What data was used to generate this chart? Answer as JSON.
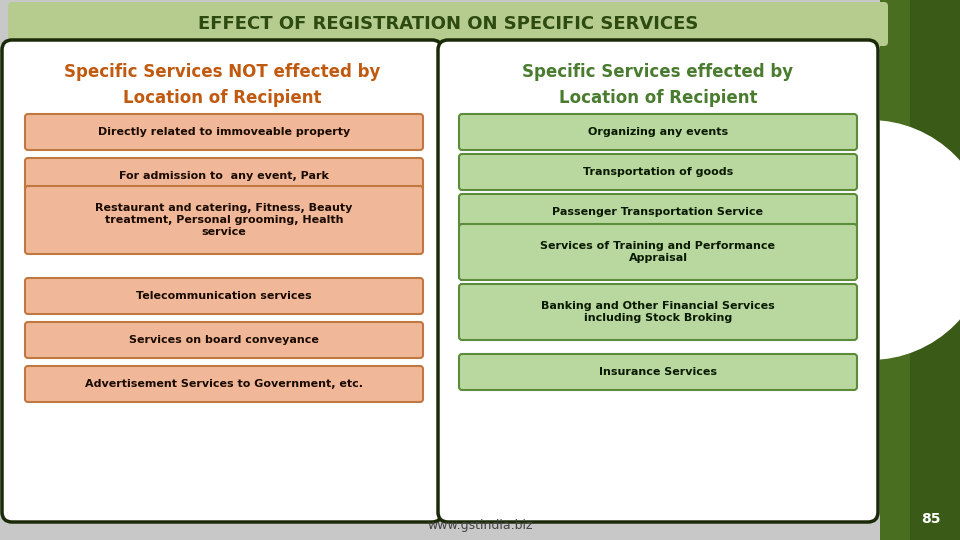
{
  "title": "EFFECT OF REGISTRATION ON SPECIFIC SERVICES",
  "title_bg": "#b5cc8e",
  "title_color": "#2d4a10",
  "slide_bg": "#c8c8c8",
  "left_header": "Specific Services NOT effected by\nLocation of Recipient",
  "right_header": "Specific Services effected by\nLocation of Recipient",
  "left_header_color": "#c05a10",
  "right_header_color": "#4a7c2f",
  "left_items": [
    "Directly related to immoveable property",
    "For admission to  any event, Park",
    "Restaurant and catering, Fitness, Beauty\ntreatment, Personal grooming, Health\nservice",
    "Telecommunication services",
    "Services on board conveyance",
    "Advertisement Services to Government, etc."
  ],
  "right_items": [
    "Organizing any events",
    "Transportation of goods",
    "Passenger Transportation Service",
    "Services of Training and Performance\nAppraisal",
    "Banking and Other Financial Services\nincluding Stock Broking",
    "Insurance Services"
  ],
  "left_box_bg": "#f0b898",
  "left_box_edge": "#c07840",
  "right_box_bg": "#b8d8a0",
  "right_box_edge": "#5a8c3a",
  "panel_bg": "#ffffff",
  "panel_edge": "#1a2a08",
  "footer_text": "www.gstindia.biz",
  "page_num": "85",
  "dark_green_side": "#3a5a18",
  "medium_green": "#4a6e20"
}
